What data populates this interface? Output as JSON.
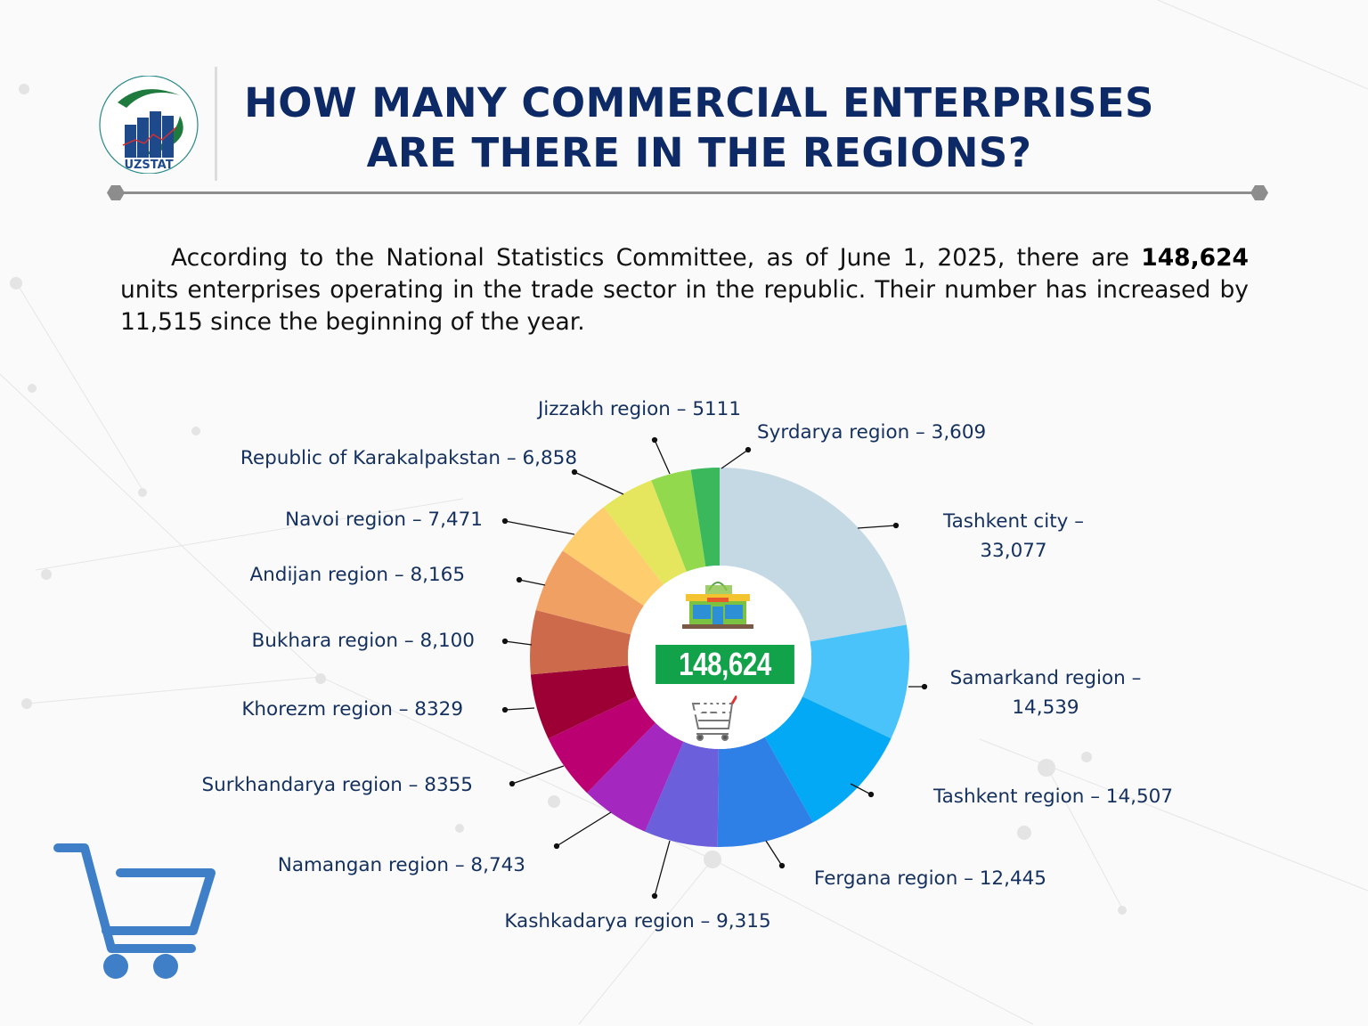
{
  "header": {
    "logo_text": "UZSTAT",
    "title_line1": "HOW MANY COMMERCIAL ENTERPRISES",
    "title_line2": "ARE THERE IN THE REGIONS?"
  },
  "intro": {
    "part1": "According to the National Statistics Committee, as of June 1, 2025, there are ",
    "bold": "148,624",
    "part2": " units  enterprises operating in the trade sector in the republic. Their number has increased by 11,515 since the beginning of the year."
  },
  "chart_data": {
    "type": "pie",
    "donut": true,
    "center_label": "148,624 UNITS",
    "categories": [
      "Tashkent city",
      "Samarkand region",
      "Tashkent region",
      "Fergana region",
      "Kashkadarya region",
      "Namangan region",
      "Surkhandarya region",
      "Khorezm region",
      "Bukhara region",
      "Andijan region",
      "Navoi region",
      "Republic of Karakalpakstan",
      "Jizzakh region",
      "Syrdarya region"
    ],
    "values": [
      33077,
      14539,
      14507,
      12445,
      9315,
      8743,
      8355,
      8329,
      8100,
      8165,
      7471,
      6858,
      5111,
      3609
    ],
    "colors": [
      "#c5d9e5",
      "#4ac3fb",
      "#03a9f4",
      "#2f80e6",
      "#6b5fdc",
      "#a427bf",
      "#bb0072",
      "#9c0034",
      "#cd6a4c",
      "#efa062",
      "#fdcd6e",
      "#e6e65e",
      "#93d94e",
      "#3bb85c"
    ],
    "labels": [
      {
        "line1": "Tashkent city –",
        "line2": "33,077"
      },
      {
        "line1": "Samarkand region –",
        "line2": "14,539"
      },
      {
        "line1": "Tashkent region – 14,507"
      },
      {
        "line1": "Fergana region – 12,445"
      },
      {
        "line1": "Kashkadarya region – 9,315"
      },
      {
        "line1": "Namangan region – 8,743"
      },
      {
        "line1": "Surkhandarya region – 8355"
      },
      {
        "line1": "Khorezm region – 8329"
      },
      {
        "line1": "Bukhara region – 8,100"
      },
      {
        "line1": "Andijan region – 8,165"
      },
      {
        "line1": "Navoi region – 7,471"
      },
      {
        "line1": "Republic of Karakalpakstan – 6,858"
      },
      {
        "line1": "Jizzakh region – 5111"
      },
      {
        "line1": "Syrdarya region – 3,609"
      }
    ]
  },
  "icons": {
    "center_top": "store-icon",
    "center_bottom": "shopping-cart-icon",
    "decor": "shopping-cart-icon"
  }
}
